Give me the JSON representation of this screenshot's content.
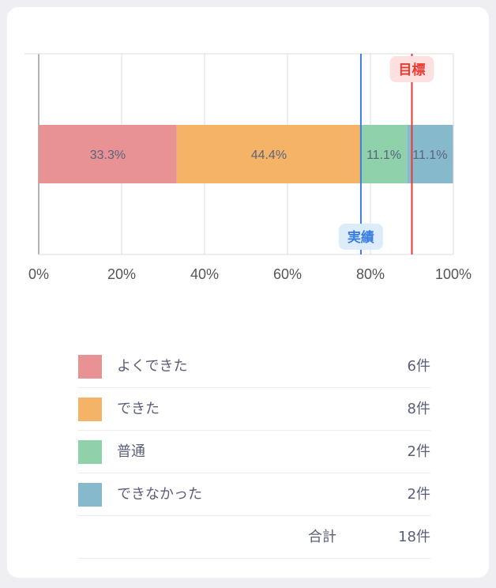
{
  "chart_data": {
    "type": "bar",
    "orientation": "horizontal",
    "stacked": true,
    "x_axis": {
      "min": 0,
      "max": 100,
      "ticks": [
        "0%",
        "20%",
        "40%",
        "60%",
        "80%",
        "100%"
      ]
    },
    "grid": true,
    "series": [
      {
        "name": "よくできた",
        "value": 33.3,
        "label": "33.3%",
        "color": "#e99294"
      },
      {
        "name": "できた",
        "value": 44.4,
        "label": "44.4%",
        "color": "#f4b366"
      },
      {
        "name": "普通",
        "value": 11.1,
        "label": "11.1%",
        "color": "#8fd1aa"
      },
      {
        "name": "できなかった",
        "value": 11.1,
        "label": "11.1%",
        "color": "#87b9cd"
      }
    ],
    "reference_lines": [
      {
        "name": "実績",
        "value": 77.7,
        "color": "#3a7de0",
        "tag_bg": "#dcecfb",
        "position": "bottom"
      },
      {
        "name": "目標",
        "value": 90,
        "color": "#ea3a32",
        "tag_bg": "#fde1e1",
        "position": "top"
      }
    ]
  },
  "legend": {
    "items": [
      {
        "label": "よくできた",
        "count": "6件",
        "color": "#e99294"
      },
      {
        "label": "できた",
        "count": "8件",
        "color": "#f4b366"
      },
      {
        "label": "普通",
        "count": "2件",
        "color": "#8fd1aa"
      },
      {
        "label": "できなかった",
        "count": "2件",
        "color": "#87b9cd"
      }
    ],
    "total_label": "合計",
    "total_count": "18件"
  }
}
